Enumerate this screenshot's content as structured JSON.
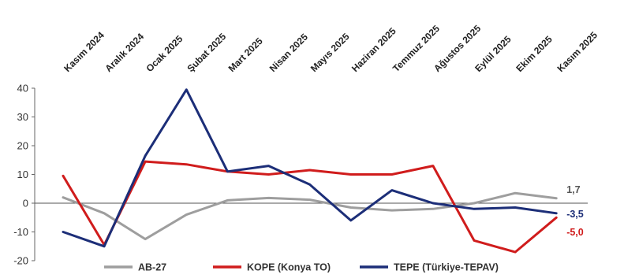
{
  "chart_data": {
    "type": "line",
    "categories": [
      "Kasım 2024",
      "Aralık 2024",
      "Ocak 2025",
      "Şubat 2025",
      "Mart 2025",
      "Nisan 2025",
      "Mayıs 2025",
      "Haziran 2025",
      "Temmuz 2025",
      "Ağustos 2025",
      "Eylül 2025",
      "Ekim 2025",
      "Kasım 2025"
    ],
    "ylim": [
      -20,
      40
    ],
    "yticks": [
      -20,
      -10,
      0,
      10,
      20,
      30,
      40
    ],
    "grid": false,
    "legend_position": "bottom",
    "series": [
      {
        "name": "AB-27",
        "color": "#9e9e9e",
        "values": [
          2.0,
          -3.5,
          -12.5,
          -4.0,
          1.0,
          1.8,
          1.2,
          -1.5,
          -2.5,
          -2.0,
          0.0,
          3.5,
          1.7
        ],
        "end_label": "1,7"
      },
      {
        "name": "KOPE (Konya TO)",
        "color": "#d01c1c",
        "values": [
          9.5,
          -14.5,
          14.5,
          13.5,
          11.0,
          10.0,
          11.5,
          10.0,
          10.0,
          13.0,
          -13.0,
          -17.0,
          -5.0
        ],
        "end_label": "-5,0"
      },
      {
        "name": "TEPE (Türkiye-TEPAV)",
        "color": "#1c2e78",
        "values": [
          -10.0,
          -15.0,
          16.5,
          39.5,
          11.0,
          13.0,
          6.5,
          -6.0,
          4.5,
          0.0,
          -2.0,
          -1.5,
          -3.5
        ],
        "end_label": "-3,5"
      }
    ]
  }
}
